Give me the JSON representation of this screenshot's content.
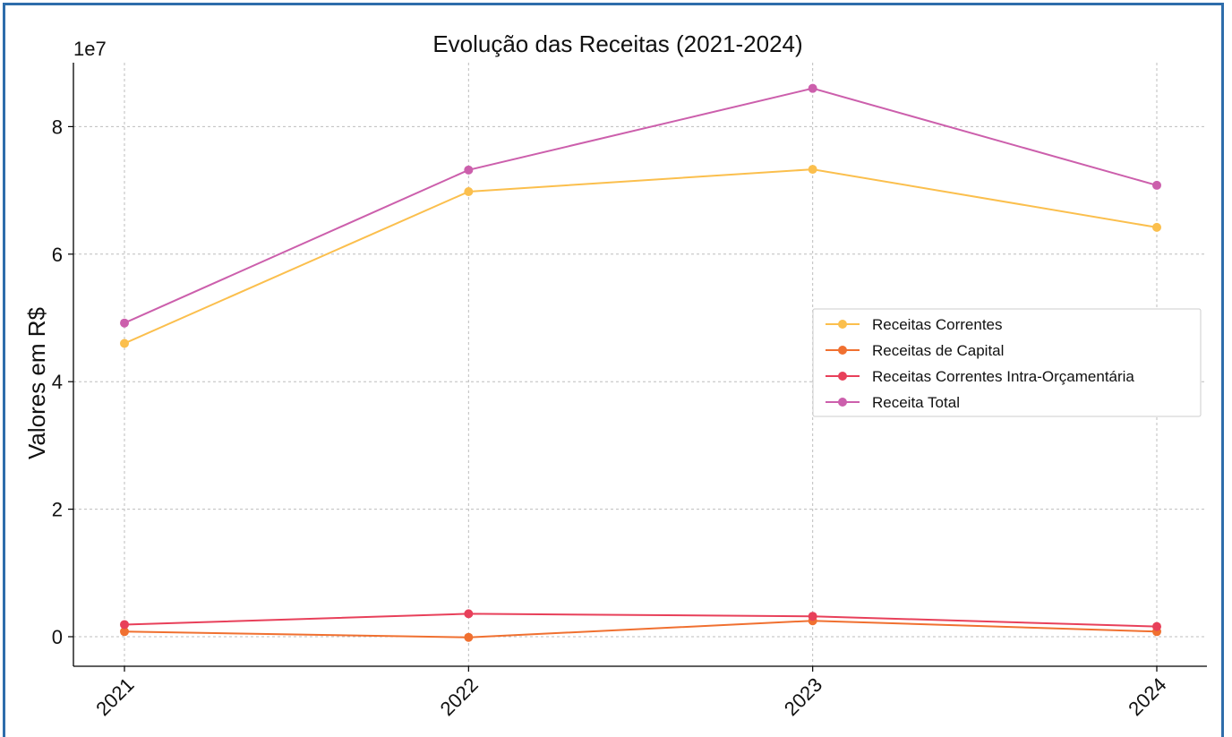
{
  "chart_data": {
    "type": "line",
    "title": "Evolução das Receitas (2021-2024)",
    "xlabel": "",
    "ylabel": "Valores em R$",
    "y_offset_label": "1e7",
    "x": [
      "2021",
      "2022",
      "2023",
      "2024"
    ],
    "ylim": [
      -0.45,
      9.0
    ],
    "y_ticks": [
      0,
      2,
      4,
      6,
      8
    ],
    "grid": true,
    "legend_position": "center-right",
    "series": [
      {
        "name": "Receitas Correntes",
        "color": "#fbbf4d",
        "values": [
          4.6,
          6.98,
          7.33,
          6.42
        ]
      },
      {
        "name": "Receitas de Capital",
        "color": "#f07030",
        "values": [
          0.08,
          -0.01,
          0.25,
          0.08
        ]
      },
      {
        "name": "Receitas Correntes Intra-Orçamentária",
        "color": "#e8405a",
        "values": [
          0.19,
          0.36,
          0.32,
          0.16
        ]
      },
      {
        "name": "Receita Total",
        "color": "#cc5fac",
        "values": [
          4.92,
          7.32,
          8.6,
          7.08
        ]
      }
    ]
  }
}
